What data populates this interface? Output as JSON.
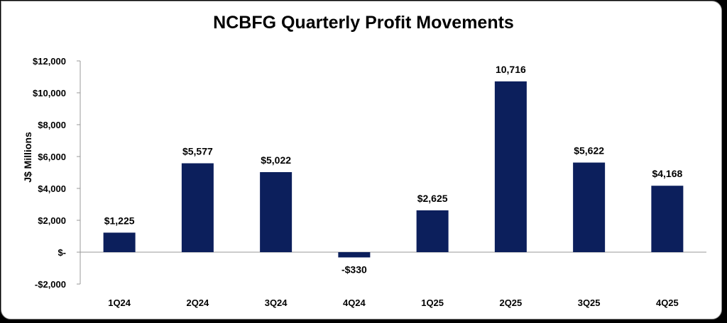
{
  "chart_data": {
    "type": "bar",
    "title": "NCBFG Quarterly Profit Movements",
    "xlabel": "",
    "ylabel": "J$ Millions",
    "categories": [
      "1Q24",
      "2Q24",
      "3Q24",
      "4Q24",
      "1Q25",
      "2Q25",
      "3Q25",
      "4Q25"
    ],
    "values": [
      1225,
      5577,
      5022,
      -330,
      2625,
      10716,
      5622,
      4168
    ],
    "data_labels": [
      "$1,225",
      "$5,577",
      "$5,022",
      "-$330",
      "$2,625",
      "10,716",
      "$5,622",
      "$4,168"
    ],
    "ylim": [
      -2000,
      12000
    ],
    "yticks": [
      -2000,
      0,
      2000,
      4000,
      6000,
      8000,
      10000,
      12000
    ],
    "ytick_labels": [
      "-$2,000",
      "$-",
      "$2,000",
      "$4,000",
      "$6,000",
      "$8,000",
      "$10,000",
      "$12,000"
    ],
    "grid": false,
    "legend": "none",
    "bar_color": "#0c1f5c"
  }
}
